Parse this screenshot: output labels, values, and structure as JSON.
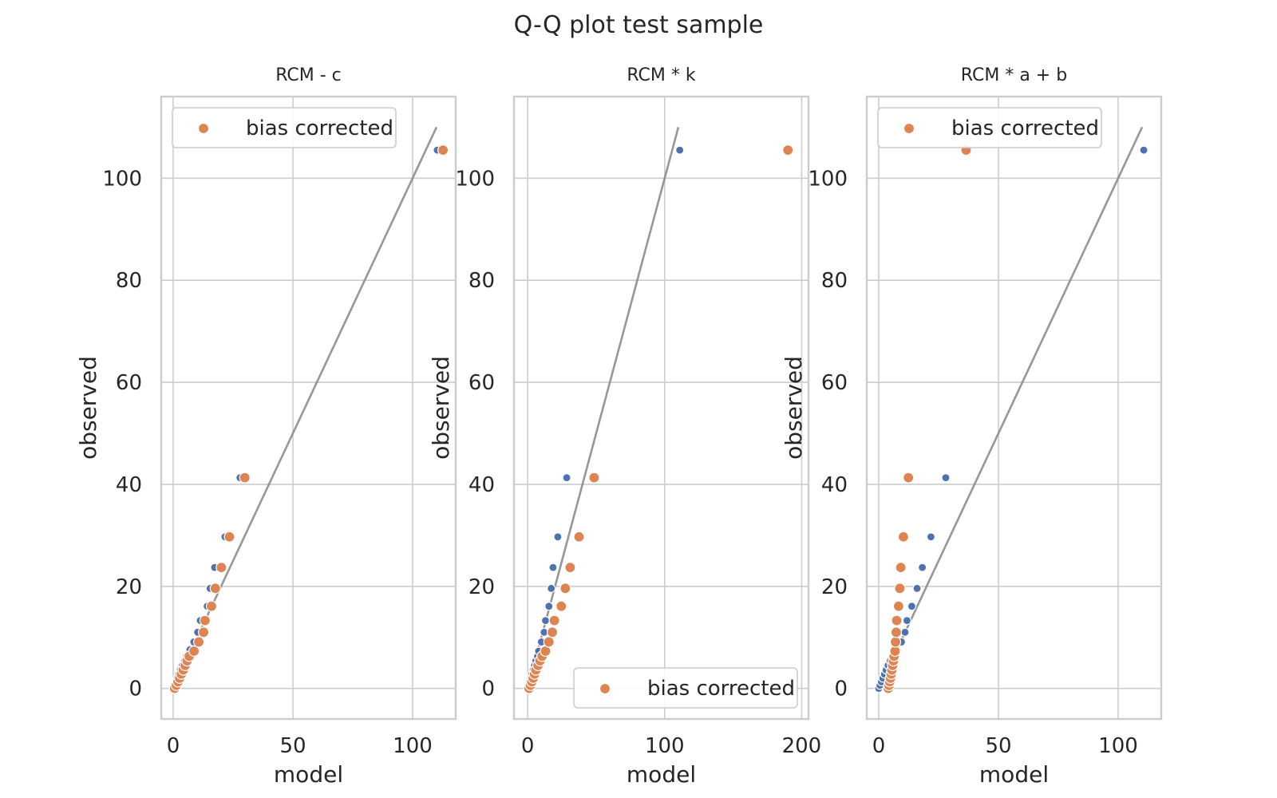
{
  "figure": {
    "title": "Q-Q plot test sample"
  },
  "chart_data": [
    {
      "type": "scatter",
      "title": "RCM - c",
      "xlabel": "model",
      "ylabel": "observed",
      "xlim": [
        -5,
        118
      ],
      "ylim": [
        -6,
        116
      ],
      "xticks": [
        0,
        50,
        100
      ],
      "yticks": [
        0,
        20,
        40,
        60,
        80,
        100
      ],
      "grid": true,
      "legend": {
        "position": "top-left",
        "entries": [
          "bias corrected"
        ]
      },
      "reference_line": {
        "x": [
          0,
          110
        ],
        "y": [
          0,
          110
        ],
        "color": "#8c8c8c"
      },
      "series": [
        {
          "color": "#4c72b0",
          "points": [
            [
              0,
              0
            ],
            [
              0.5,
              0.6
            ],
            [
              1,
              1.3
            ],
            [
              1.6,
              2
            ],
            [
              2.3,
              2.8
            ],
            [
              3,
              3.6
            ],
            [
              3.8,
              4.5
            ],
            [
              4.7,
              5.4
            ],
            [
              5.6,
              6.3
            ],
            [
              7,
              7.6
            ],
            [
              8.6,
              9.1
            ],
            [
              10.2,
              11
            ],
            [
              11.3,
              13.3
            ],
            [
              14.2,
              16.1
            ],
            [
              15.4,
              19.6
            ],
            [
              17.3,
              23.7
            ],
            [
              21.6,
              29.7
            ],
            [
              27.9,
              41.3
            ],
            [
              110.3,
              105.5
            ]
          ]
        },
        {
          "name": "bias corrected",
          "color": "#dd8452",
          "points": [
            [
              0.6,
              0
            ],
            [
              1.3,
              0.6
            ],
            [
              2,
              1.3
            ],
            [
              2.7,
              2
            ],
            [
              3.4,
              2.8
            ],
            [
              4.2,
              3.6
            ],
            [
              5,
              4.5
            ],
            [
              5.8,
              5.4
            ],
            [
              6.7,
              6.3
            ],
            [
              8.7,
              7.3
            ],
            [
              10.7,
              9.1
            ],
            [
              12.7,
              11
            ],
            [
              13.3,
              13.3
            ],
            [
              16,
              16.1
            ],
            [
              17.6,
              19.6
            ],
            [
              20.1,
              23.7
            ],
            [
              23.5,
              29.7
            ],
            [
              29.9,
              41.3
            ],
            [
              112.7,
              105.5
            ]
          ]
        }
      ]
    },
    {
      "type": "scatter",
      "title": "RCM * k",
      "xlabel": "model",
      "ylabel": "observed",
      "xlim": [
        -10,
        205
      ],
      "ylim": [
        -6,
        116
      ],
      "xticks": [
        0,
        100,
        200
      ],
      "yticks": [
        0,
        20,
        40,
        60,
        80,
        100
      ],
      "grid": true,
      "legend": {
        "position": "bottom-right",
        "entries": [
          "bias corrected"
        ]
      },
      "reference_line": {
        "x": [
          0,
          110
        ],
        "y": [
          0,
          110
        ],
        "color": "#8c8c8c"
      },
      "series": [
        {
          "color": "#4c72b0",
          "points": [
            [
              0,
              0
            ],
            [
              0.8,
              0.6
            ],
            [
              1.5,
              1.3
            ],
            [
              2.2,
              2
            ],
            [
              3,
              2.8
            ],
            [
              4,
              3.6
            ],
            [
              5,
              4.5
            ],
            [
              6,
              5.4
            ],
            [
              7.2,
              6.3
            ],
            [
              8,
              7.3
            ],
            [
              10,
              9.1
            ],
            [
              12,
              11
            ],
            [
              13,
              13.3
            ],
            [
              15.5,
              16.1
            ],
            [
              17.2,
              19.6
            ],
            [
              18.5,
              23.7
            ],
            [
              22,
              29.7
            ],
            [
              28.5,
              41.3
            ],
            [
              111,
              105.5
            ]
          ]
        },
        {
          "name": "bias corrected",
          "color": "#dd8452",
          "points": [
            [
              1,
              0
            ],
            [
              2,
              0.6
            ],
            [
              3,
              1.3
            ],
            [
              4,
              2
            ],
            [
              5,
              2.8
            ],
            [
              6,
              3.6
            ],
            [
              7.5,
              4.5
            ],
            [
              9,
              5.4
            ],
            [
              10.5,
              6.3
            ],
            [
              13,
              7.3
            ],
            [
              15.5,
              9.1
            ],
            [
              18,
              11
            ],
            [
              19.5,
              13.3
            ],
            [
              24.5,
              16.1
            ],
            [
              27.5,
              19.6
            ],
            [
              31,
              23.7
            ],
            [
              37.5,
              29.7
            ],
            [
              48.5,
              41.3
            ],
            [
              190,
              105.5
            ]
          ]
        }
      ]
    },
    {
      "type": "scatter",
      "title": "RCM * a + b",
      "xlabel": "model",
      "ylabel": "observed",
      "xlim": [
        -5,
        118
      ],
      "ylim": [
        -6,
        116
      ],
      "xticks": [
        0,
        50,
        100
      ],
      "yticks": [
        0,
        20,
        40,
        60,
        80,
        100
      ],
      "grid": true,
      "legend": {
        "position": "top-left",
        "entries": [
          "bias corrected"
        ]
      },
      "reference_line": {
        "x": [
          0,
          110
        ],
        "y": [
          0,
          110
        ],
        "color": "#8c8c8c"
      },
      "series": [
        {
          "color": "#4c72b0",
          "points": [
            [
              0,
              0
            ],
            [
              0.5,
              0.6
            ],
            [
              1.1,
              1.3
            ],
            [
              1.7,
              2
            ],
            [
              2.4,
              2.8
            ],
            [
              3.1,
              3.6
            ],
            [
              3.9,
              4.5
            ],
            [
              4.8,
              5.4
            ],
            [
              5.7,
              6.3
            ],
            [
              7.2,
              7.3
            ],
            [
              9.5,
              9.1
            ],
            [
              11,
              11
            ],
            [
              11.8,
              13.3
            ],
            [
              13.8,
              16.1
            ],
            [
              16,
              19.6
            ],
            [
              18.2,
              23.7
            ],
            [
              21.8,
              29.7
            ],
            [
              28,
              41.3
            ],
            [
              110.7,
              105.5
            ]
          ]
        },
        {
          "name": "bias corrected",
          "color": "#dd8452",
          "points": [
            [
              4,
              0
            ],
            [
              4.3,
              0.6
            ],
            [
              4.6,
              1.3
            ],
            [
              4.9,
              2
            ],
            [
              5.2,
              2.8
            ],
            [
              5.5,
              3.6
            ],
            [
              5.8,
              4.5
            ],
            [
              6.1,
              5.4
            ],
            [
              6.4,
              6.3
            ],
            [
              6.8,
              7.3
            ],
            [
              7,
              9.1
            ],
            [
              7.3,
              11
            ],
            [
              7.5,
              13.3
            ],
            [
              8.3,
              16.1
            ],
            [
              8.8,
              19.6
            ],
            [
              9.2,
              23.7
            ],
            [
              10.3,
              29.7
            ],
            [
              12.4,
              41.3
            ],
            [
              36.5,
              105.5
            ]
          ]
        }
      ]
    }
  ]
}
